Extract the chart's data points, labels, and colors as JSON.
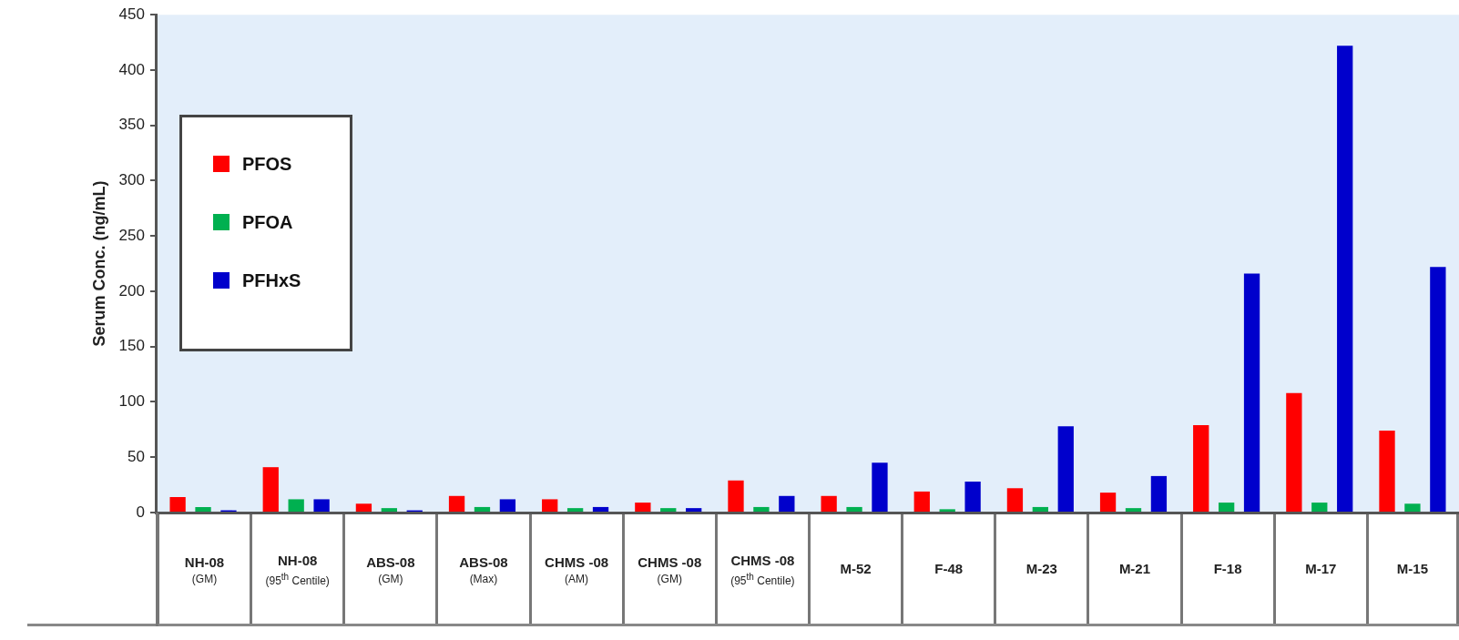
{
  "chart_data": {
    "type": "bar",
    "ylabel": "Serum Conc. (ng/mL)",
    "categories": [
      "NH-08 (GM)",
      "NH-08 (95$^{th}$ Centile)",
      "ABS-08 (GM)",
      "ABS-08 (Max)",
      "CHMS -08 (AM)",
      "CHMS -08 (GM)",
      "CHMS -08 (95$^{th}$ Centile)",
      "M-52",
      "F-48",
      "M-23",
      "M-21",
      "F-18",
      "M-17",
      "M-15"
    ],
    "series": [
      {
        "name": "PFOS",
        "color": "#ff0000",
        "values": [
          14,
          41,
          8,
          15,
          12,
          9,
          29,
          15,
          19,
          22,
          18,
          79,
          108,
          74
        ]
      },
      {
        "name": "PFOA",
        "color": "#00b050",
        "values": [
          5,
          12,
          4,
          5,
          4,
          4,
          5,
          5,
          3,
          5,
          4,
          9,
          9,
          8
        ]
      },
      {
        "name": "PFHxS",
        "color": "#0000cc",
        "values": [
          2,
          12,
          2,
          12,
          5,
          4,
          15,
          45,
          28,
          78,
          33,
          216,
          422,
          222
        ]
      }
    ],
    "ylim": [
      0,
      450
    ],
    "yticks": [
      0,
      50,
      100,
      150,
      200,
      250,
      300,
      350,
      400,
      450
    ],
    "legend": "top left"
  }
}
